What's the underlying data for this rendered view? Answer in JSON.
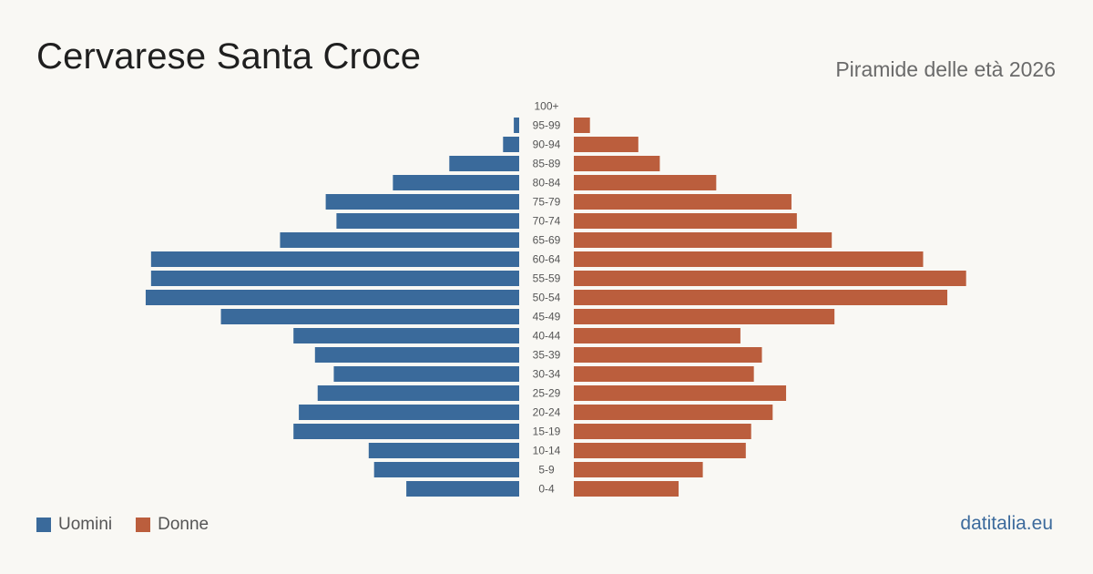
{
  "header": {
    "title": "Cervarese Santa Croce",
    "subtitle": "Piramide delle età 2026"
  },
  "legend": {
    "men_label": "Uomini",
    "women_label": "Donne"
  },
  "brand": "datitalia.eu",
  "colors": {
    "men": "#3a6a9b",
    "women": "#bb5e3d",
    "background": "#f9f8f4"
  },
  "chart_data": {
    "type": "bar",
    "orientation": "horizontal-pyramid",
    "categories": [
      "100+",
      "95-99",
      "90-94",
      "85-89",
      "80-84",
      "75-79",
      "70-74",
      "65-69",
      "60-64",
      "55-59",
      "50-54",
      "45-49",
      "40-44",
      "35-39",
      "30-34",
      "25-29",
      "20-24",
      "15-19",
      "10-14",
      "5-9",
      "0-4"
    ],
    "series": [
      {
        "name": "Uomini",
        "values": [
          0,
          2,
          6,
          26,
          47,
          72,
          68,
          89,
          137,
          137,
          139,
          111,
          84,
          76,
          69,
          75,
          82,
          84,
          56,
          54,
          42
        ]
      },
      {
        "name": "Donne",
        "values": [
          0,
          6,
          24,
          32,
          53,
          81,
          83,
          96,
          130,
          146,
          139,
          97,
          62,
          70,
          67,
          79,
          74,
          66,
          64,
          48,
          39
        ]
      }
    ],
    "grid": false,
    "legend_position": "bottom-left"
  }
}
